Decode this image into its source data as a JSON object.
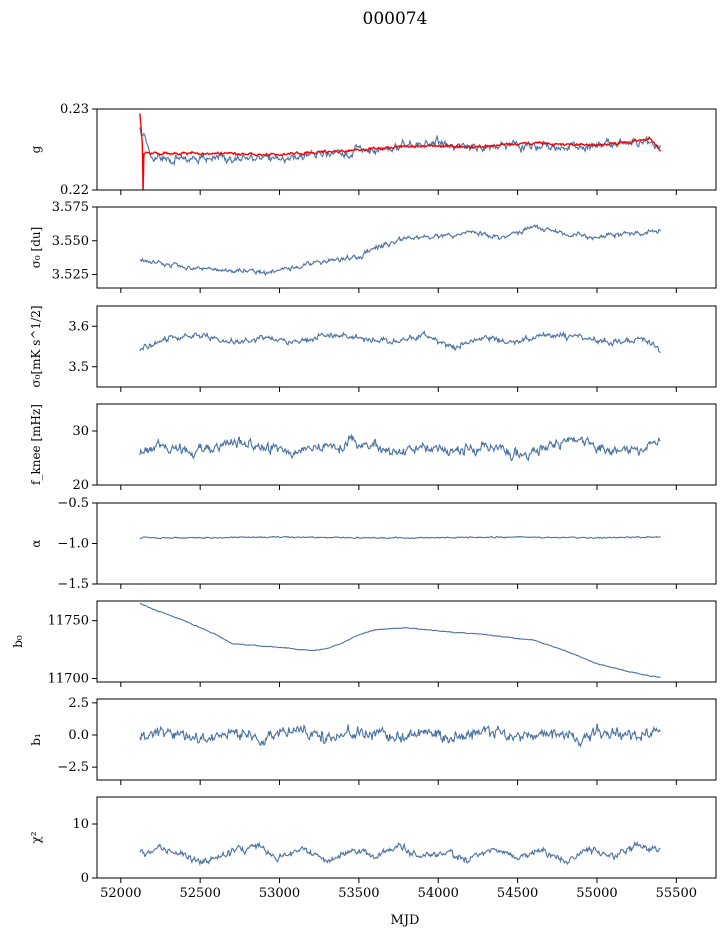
{
  "figure": {
    "suptitle": "000074",
    "xlabel": "MJD",
    "xlim": [
      51850,
      55750
    ],
    "xticks": [
      52000,
      52500,
      53000,
      53500,
      54000,
      54500,
      55000,
      55500
    ],
    "data_range": [
      52120,
      55400
    ],
    "colors": {
      "main_line": "#4c72a4",
      "overlay_line": "#ff0000"
    }
  },
  "chart_data": [
    {
      "type": "line",
      "ylabel": "g",
      "ylim": [
        0.22,
        0.23
      ],
      "yticks": [
        0.22,
        0.23
      ],
      "ytick_labels": [
        "0.22",
        "0.23"
      ],
      "series": [
        {
          "color": "#4c72a4",
          "x": [
            52120,
            52200,
            52300,
            52400,
            52600,
            52800,
            53000,
            53200,
            53400,
            53600,
            53800,
            54000,
            54200,
            54400,
            54600,
            54800,
            55000,
            55200,
            55300,
            55400
          ],
          "y": [
            0.2275,
            0.224,
            0.2236,
            0.2238,
            0.224,
            0.2238,
            0.224,
            0.2243,
            0.2245,
            0.225,
            0.2255,
            0.2258,
            0.2252,
            0.2255,
            0.2256,
            0.2252,
            0.2255,
            0.2258,
            0.2262,
            0.225
          ]
        },
        {
          "color": "#ff0000",
          "x": [
            52120,
            52140,
            52200,
            52400,
            52600,
            52800,
            53000,
            53200,
            53400,
            53600,
            53800,
            54000,
            54200,
            54400,
            54600,
            54800,
            55000,
            55200,
            55330,
            55400
          ],
          "y": [
            0.2295,
            0.2245,
            0.2245,
            0.2246,
            0.2245,
            0.2244,
            0.2244,
            0.2246,
            0.2248,
            0.2251,
            0.2254,
            0.2255,
            0.2253,
            0.2256,
            0.2258,
            0.2256,
            0.2256,
            0.2258,
            0.2265,
            0.2248
          ]
        }
      ]
    },
    {
      "type": "line",
      "ylabel": "σ₀ [du]",
      "ylim": [
        3.515,
        3.575
      ],
      "yticks": [
        3.525,
        3.55,
        3.575
      ],
      "ytick_labels": [
        "3.525",
        "3.550",
        "3.575"
      ],
      "series": [
        {
          "color": "#4c72a4",
          "x": [
            52120,
            52300,
            52500,
            52700,
            52900,
            53100,
            53300,
            53500,
            53600,
            53800,
            54000,
            54200,
            54400,
            54600,
            54800,
            55000,
            55200,
            55400
          ],
          "y": [
            3.536,
            3.532,
            3.53,
            3.528,
            3.526,
            3.53,
            3.535,
            3.538,
            3.545,
            3.552,
            3.553,
            3.556,
            3.552,
            3.56,
            3.555,
            3.552,
            3.555,
            3.557
          ]
        }
      ]
    },
    {
      "type": "line",
      "ylabel": "σ₀[mK s^1/2]",
      "ylim": [
        3.45,
        3.65
      ],
      "yticks": [
        3.5,
        3.6
      ],
      "ytick_labels": [
        "3.5",
        "3.6"
      ],
      "series": [
        {
          "color": "#4c72a4",
          "x": [
            52120,
            52300,
            52500,
            52700,
            52900,
            53100,
            53300,
            53500,
            53700,
            53900,
            54100,
            54300,
            54500,
            54700,
            54900,
            55100,
            55300,
            55400
          ],
          "y": [
            3.54,
            3.57,
            3.58,
            3.56,
            3.57,
            3.56,
            3.58,
            3.57,
            3.56,
            3.58,
            3.55,
            3.57,
            3.56,
            3.58,
            3.57,
            3.56,
            3.57,
            3.54
          ]
        }
      ]
    },
    {
      "type": "line",
      "ylabel": "f_knee [mHz]",
      "ylim": [
        20,
        35
      ],
      "yticks": [
        20,
        30
      ],
      "ytick_labels": [
        "20",
        "30"
      ],
      "series": [
        {
          "color": "#4c72a4",
          "x": [
            52120,
            52300,
            52500,
            52700,
            52900,
            53100,
            53300,
            53500,
            53700,
            53900,
            54100,
            54300,
            54500,
            54700,
            54900,
            55100,
            55300,
            55400
          ],
          "y": [
            26,
            27,
            26,
            28,
            27,
            26,
            27,
            28,
            26,
            27,
            26,
            27,
            26,
            27,
            28,
            26,
            27,
            28
          ]
        }
      ]
    },
    {
      "type": "line",
      "ylabel": "α",
      "ylim": [
        -1.5,
        -0.5
      ],
      "yticks": [
        -1.5,
        -1.0,
        -0.5
      ],
      "ytick_labels": [
        "−1.5",
        "−1.0",
        "−0.5"
      ],
      "series": [
        {
          "color": "#4c72a4",
          "x": [
            52120,
            52500,
            53000,
            53500,
            54000,
            54500,
            55000,
            55400
          ],
          "y": [
            -0.93,
            -0.93,
            -0.92,
            -0.93,
            -0.93,
            -0.92,
            -0.93,
            -0.92
          ]
        }
      ]
    },
    {
      "type": "line",
      "ylabel": "b₀",
      "ylim": [
        11697,
        11767
      ],
      "yticks": [
        11700,
        11750
      ],
      "ytick_labels": [
        "11700",
        "11750"
      ],
      "series": [
        {
          "color": "#4c72a4",
          "x": [
            52120,
            52200,
            52400,
            52600,
            52700,
            52800,
            53000,
            53200,
            53300,
            53400,
            53500,
            53600,
            53800,
            54000,
            54300,
            54600,
            54800,
            55000,
            55200,
            55300,
            55400
          ],
          "y": [
            11765,
            11760,
            11750,
            11738,
            11730,
            11729,
            11727,
            11724,
            11726,
            11731,
            11738,
            11742,
            11744,
            11741,
            11738,
            11733,
            11724,
            11713,
            11706,
            11703,
            11701
          ]
        }
      ]
    },
    {
      "type": "line",
      "ylabel": "b₁",
      "ylim": [
        -3.5,
        2.8
      ],
      "yticks": [
        -2.5,
        0,
        2.5
      ],
      "ytick_labels": [
        "−2.5",
        "0.0",
        "2.5"
      ],
      "series": [
        {
          "color": "#4c72a4",
          "x": [
            52120,
            52300,
            52500,
            52700,
            52900,
            53100,
            53300,
            53500,
            53700,
            53900,
            54100,
            54300,
            54500,
            54700,
            54900,
            55100,
            55300,
            55400
          ],
          "y": [
            -0.2,
            0.3,
            -0.4,
            0.2,
            -0.3,
            0.4,
            -0.2,
            0.3,
            -0.1,
            0.2,
            -0.3,
            0.4,
            -0.2,
            0.3,
            -0.3,
            0.2,
            -0.1,
            0.3
          ]
        }
      ]
    },
    {
      "type": "line",
      "ylabel": "χ²",
      "ylim": [
        0,
        15
      ],
      "yticks": [
        0,
        10
      ],
      "ytick_labels": [
        "0",
        "10"
      ],
      "series": [
        {
          "color": "#4c72a4",
          "x": [
            52120,
            52250,
            52400,
            52550,
            52700,
            52850,
            53000,
            53150,
            53300,
            53450,
            53600,
            53750,
            53900,
            54050,
            54200,
            54350,
            54500,
            54650,
            54800,
            54950,
            55100,
            55250,
            55400
          ],
          "y": [
            4,
            5.5,
            4,
            3,
            5,
            6,
            3.5,
            5.5,
            3,
            5,
            4,
            6,
            4,
            5,
            3.5,
            5.5,
            4,
            5,
            3,
            5.5,
            4,
            6,
            5
          ]
        }
      ]
    }
  ]
}
